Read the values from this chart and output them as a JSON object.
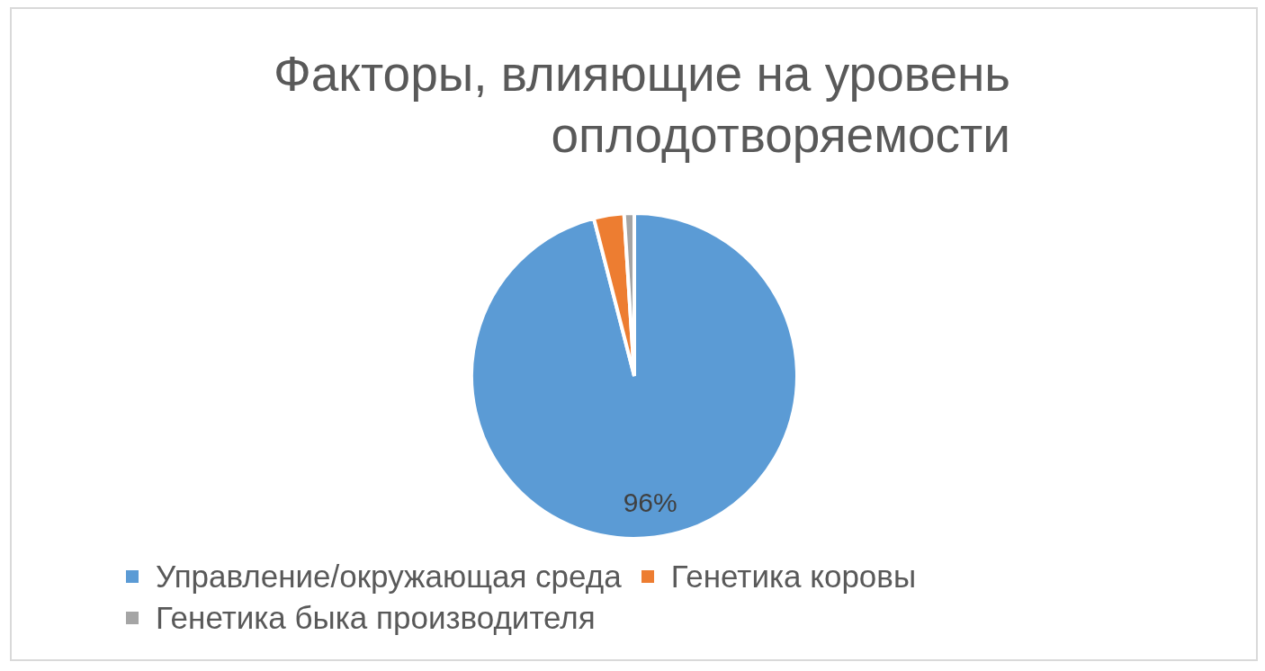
{
  "chart_data": {
    "type": "pie",
    "title": "Факторы, влияющие на уровень оплодотворяемости",
    "categories": [
      "Управление/окружающая среда",
      "Генетика коровы",
      "Генетика быка производителя"
    ],
    "values": [
      96,
      3,
      1
    ],
    "colors": [
      "#5b9bd5",
      "#ed7d31",
      "#a5a5a5"
    ],
    "value_labels": [
      "96%",
      null,
      null
    ],
    "legend": "bottom"
  }
}
